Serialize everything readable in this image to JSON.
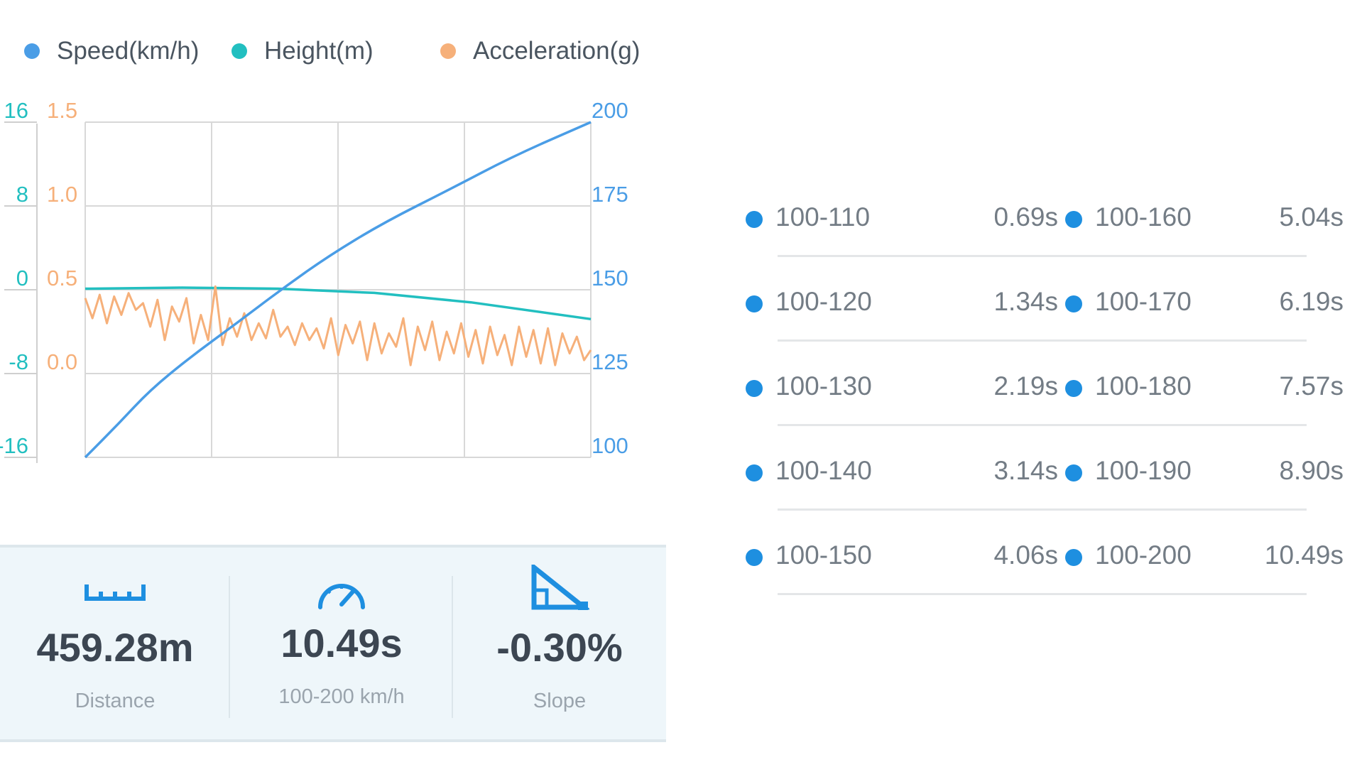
{
  "legend": [
    {
      "label": "Speed(km/h)",
      "color": "#4a9de6"
    },
    {
      "label": "Height(m)",
      "color": "#22bfc0"
    },
    {
      "label": "Acceleration(g)",
      "color": "#f6b07a"
    }
  ],
  "chart_data": {
    "type": "line",
    "axes": {
      "height_ticks": [
        "16",
        "8",
        "0",
        "-8",
        "-16"
      ],
      "accel_ticks": [
        "1.5",
        "1.0",
        "0.5",
        "0.0"
      ],
      "speed_ticks": [
        "200",
        "175",
        "150",
        "125",
        "100"
      ],
      "height_range": [
        -16,
        16
      ],
      "accel_range": [
        -0.5,
        1.5
      ],
      "speed_range": [
        100,
        200
      ]
    },
    "grid": true,
    "legend_position": "top-left",
    "series": [
      {
        "name": "Speed(km/h)",
        "axis": "speed",
        "color": "#4a9de6",
        "x": [
          0,
          0.69,
          1.34,
          2.19,
          3.14,
          4.06,
          5.04,
          6.19,
          7.57,
          8.9,
          10.49
        ],
        "values": [
          100,
          110,
          120,
          130,
          140,
          150,
          160,
          170,
          180,
          190,
          200
        ]
      },
      {
        "name": "Height(m)",
        "axis": "height",
        "color": "#22bfc0",
        "x": [
          0,
          2,
          4,
          6,
          8,
          10.49
        ],
        "values": [
          0.1,
          0.2,
          0.1,
          -0.3,
          -1.2,
          -2.8
        ]
      },
      {
        "name": "Acceleration(g)",
        "axis": "accel",
        "color": "#f6b07a",
        "x": [
          0,
          0.15,
          0.3,
          0.45,
          0.6,
          0.75,
          0.9,
          1.05,
          1.2,
          1.35,
          1.5,
          1.65,
          1.8,
          1.95,
          2.1,
          2.25,
          2.4,
          2.55,
          2.7,
          2.85,
          3.0,
          3.15,
          3.3,
          3.45,
          3.6,
          3.75,
          3.9,
          4.05,
          4.2,
          4.35,
          4.5,
          4.65,
          4.8,
          4.95,
          5.1,
          5.25,
          5.4,
          5.55,
          5.7,
          5.85,
          6.0,
          6.15,
          6.3,
          6.45,
          6.6,
          6.75,
          6.9,
          7.05,
          7.2,
          7.35,
          7.5,
          7.65,
          7.8,
          7.95,
          8.1,
          8.25,
          8.4,
          8.55,
          8.7,
          8.85,
          9.0,
          9.15,
          9.3,
          9.45,
          9.6,
          9.75,
          9.9,
          10.05,
          10.2,
          10.35,
          10.49
        ],
        "values": [
          0.45,
          0.33,
          0.47,
          0.3,
          0.46,
          0.35,
          0.48,
          0.38,
          0.42,
          0.28,
          0.44,
          0.2,
          0.4,
          0.31,
          0.45,
          0.18,
          0.35,
          0.2,
          0.52,
          0.17,
          0.33,
          0.22,
          0.36,
          0.2,
          0.3,
          0.21,
          0.38,
          0.22,
          0.28,
          0.17,
          0.3,
          0.2,
          0.27,
          0.15,
          0.33,
          0.11,
          0.29,
          0.18,
          0.31,
          0.08,
          0.3,
          0.12,
          0.24,
          0.16,
          0.33,
          0.05,
          0.28,
          0.14,
          0.31,
          0.08,
          0.25,
          0.12,
          0.3,
          0.1,
          0.26,
          0.06,
          0.28,
          0.11,
          0.23,
          0.05,
          0.28,
          0.1,
          0.26,
          0.06,
          0.27,
          0.05,
          0.24,
          0.12,
          0.22,
          0.08,
          0.14
        ]
      }
    ]
  },
  "stats": [
    {
      "value": "459.28m",
      "label": "Distance",
      "icon": "ruler-icon"
    },
    {
      "value": "10.49s",
      "label": "100-200 km/h",
      "icon": "speedometer-icon"
    },
    {
      "value": "-0.30%",
      "label": "Slope",
      "icon": "slope-icon"
    }
  ],
  "splits": [
    {
      "left": {
        "range": "100-110",
        "time": "0.69s"
      },
      "right": {
        "range": "100-160",
        "time": "5.04s"
      }
    },
    {
      "left": {
        "range": "100-120",
        "time": "1.34s"
      },
      "right": {
        "range": "100-170",
        "time": "6.19s"
      }
    },
    {
      "left": {
        "range": "100-130",
        "time": "2.19s"
      },
      "right": {
        "range": "100-180",
        "time": "7.57s"
      }
    },
    {
      "left": {
        "range": "100-140",
        "time": "3.14s"
      },
      "right": {
        "range": "100-190",
        "time": "8.90s"
      }
    },
    {
      "left": {
        "range": "100-150",
        "time": "4.06s"
      },
      "right": {
        "range": "100-200",
        "time": "10.49s"
      }
    }
  ],
  "colors": {
    "split_dot": "#1e8fe0",
    "stat_icon": "#1e8fe0",
    "height_axis": "#22bfc0",
    "accel_axis": "#f6b07a",
    "speed_axis": "#4a9de6"
  }
}
